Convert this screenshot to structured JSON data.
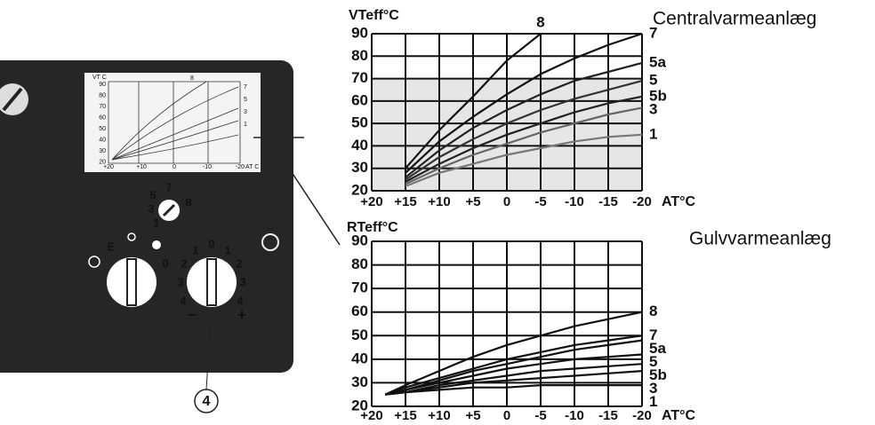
{
  "chart_data": [
    {
      "type": "line",
      "title": "Centralvarmeanlæg",
      "ylabel": "VTeff°C",
      "xlabel": "AT°C",
      "x": [
        18,
        15,
        10,
        5,
        0,
        -5,
        -10,
        -15,
        -20
      ],
      "xlim": [
        20,
        -20
      ],
      "xticks": [
        {
          "value": 20,
          "label": "+20"
        },
        {
          "value": 15,
          "label": "+15"
        },
        {
          "value": 10,
          "label": "+10"
        },
        {
          "value": 5,
          "label": "+5"
        },
        0,
        -5,
        -10,
        -15,
        -20
      ],
      "ylim": [
        20,
        90
      ],
      "yticks": [
        20,
        30,
        40,
        50,
        60,
        70,
        80,
        90
      ],
      "grid": true,
      "series": [
        {
          "name": "8",
          "color": "#111",
          "values": [
            null,
            30,
            47,
            62,
            78,
            90,
            null,
            null,
            null
          ]
        },
        {
          "name": "7",
          "color": "#111",
          "values": [
            null,
            28,
            42,
            53,
            63,
            72,
            79,
            85,
            90
          ]
        },
        {
          "name": "5a",
          "color": "#222",
          "values": [
            null,
            26,
            38,
            48,
            56,
            63,
            69,
            73,
            77
          ]
        },
        {
          "name": "5",
          "color": "#333",
          "values": [
            null,
            25,
            35,
            43,
            50,
            56,
            61,
            65,
            69
          ]
        },
        {
          "name": "5b",
          "color": "#222",
          "values": [
            null,
            24,
            32,
            39,
            45,
            50,
            55,
            59,
            62
          ]
        },
        {
          "name": "3",
          "color": "#666",
          "values": [
            null,
            23,
            30,
            36,
            41,
            46,
            50,
            54,
            57
          ]
        },
        {
          "name": "1",
          "color": "#777",
          "values": [
            null,
            22,
            28,
            32,
            36,
            39,
            42,
            44,
            45
          ]
        }
      ]
    },
    {
      "type": "line",
      "title": "Gulvvarmeanlæg",
      "ylabel": "RTeff°C",
      "xlabel": "AT°C",
      "x": [
        18,
        15,
        10,
        5,
        0,
        -5,
        -10,
        -15,
        -20
      ],
      "xlim": [
        20,
        -20
      ],
      "xticks": [
        {
          "value": 20,
          "label": "+20"
        },
        {
          "value": 15,
          "label": "+15"
        },
        {
          "value": 10,
          "label": "+10"
        },
        {
          "value": 5,
          "label": "+5"
        },
        0,
        -5,
        -10,
        -15,
        -20
      ],
      "ylim": [
        20,
        90
      ],
      "yticks": [
        20,
        30,
        40,
        50,
        60,
        70,
        80,
        90
      ],
      "grid": true,
      "series": [
        {
          "name": "8",
          "color": "#111",
          "values": [
            25,
            29,
            35,
            41,
            46,
            50,
            54,
            57,
            60
          ]
        },
        {
          "name": "7",
          "color": "#111",
          "values": [
            25,
            28,
            32,
            36,
            40,
            43,
            46,
            48,
            50
          ]
        },
        {
          "name": "5a",
          "color": "#111",
          "values": [
            25,
            27,
            31,
            35,
            38,
            41,
            44,
            46,
            48
          ]
        },
        {
          "name": "5",
          "color": "#111",
          "values": [
            25,
            27,
            30,
            33,
            36,
            38,
            40,
            41,
            42
          ]
        },
        {
          "name": "5b",
          "color": "#111",
          "values": [
            25,
            26,
            29,
            31,
            33,
            35,
            36,
            37,
            38
          ]
        },
        {
          "name": "3",
          "color": "#111",
          "values": [
            25,
            26,
            28,
            30,
            31,
            32,
            33,
            34,
            35
          ]
        },
        {
          "name": "1",
          "color": "#111",
          "values": [
            25,
            26,
            27,
            28,
            28,
            29,
            29,
            29,
            29
          ]
        }
      ]
    }
  ],
  "panel": {
    "mini_chart": {
      "ylabel": "VT C",
      "xlabel": "AT C",
      "curve": "8",
      "yticks": [
        "90",
        "80",
        "70",
        "60",
        "50",
        "40",
        "30",
        "20"
      ],
      "xticks": [
        "+20",
        "+10",
        "0",
        "-10",
        "-20"
      ],
      "series": [
        "7",
        "5",
        "3",
        "1"
      ]
    },
    "small_dial": [
      "7",
      "5",
      "3",
      "1",
      "8"
    ],
    "left_dial": [
      "E",
      "0"
    ],
    "right_dial": [
      "4",
      "3",
      "2",
      "1",
      "0",
      "1",
      "2",
      "3",
      "4"
    ],
    "signs": [
      "−",
      "+"
    ],
    "callout": "4"
  }
}
